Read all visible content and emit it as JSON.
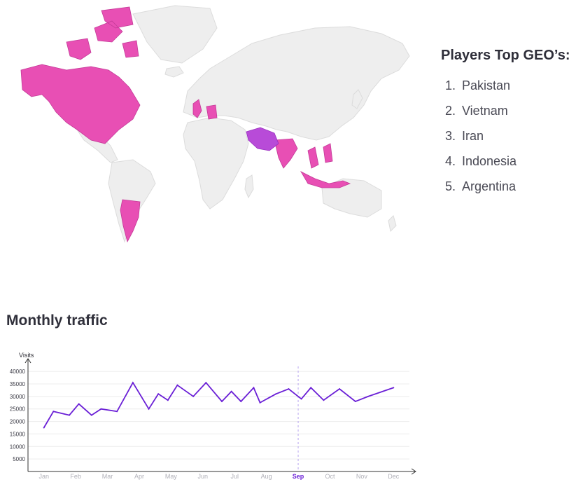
{
  "geo": {
    "title": "Players Top GEO’s:",
    "items": [
      {
        "rank": "1.",
        "name": "Pakistan"
      },
      {
        "rank": "2.",
        "name": "Vietnam"
      },
      {
        "rank": "3.",
        "name": "Iran"
      },
      {
        "rank": "4.",
        "name": "Indonesia"
      },
      {
        "rank": "5.",
        "name": "Argentina"
      }
    ]
  },
  "map": {
    "base_color": "#eeeeee",
    "highlight_color": "#e84fb4",
    "highlight_alt_color": "#b84bd8",
    "accent_color": "#8a3be0"
  },
  "traffic": {
    "title": "Monthly traffic"
  },
  "chart_data": {
    "type": "line",
    "ylabel": "Visits",
    "xlabel": "",
    "ylim": [
      0,
      42000
    ],
    "yticks": [
      5000,
      10000,
      15000,
      20000,
      25000,
      30000,
      35000,
      40000
    ],
    "ytick_labels": [
      "5000",
      "10000",
      "15000",
      "20000",
      "25000",
      "30000",
      "35000",
      "40000"
    ],
    "months": [
      "Jan",
      "Feb",
      "Mar",
      "Apr",
      "May",
      "Jun",
      "Jul",
      "Aug",
      "Sep",
      "Oct",
      "Nov",
      "Dec"
    ],
    "highlighted_month": "Sep",
    "x": [
      0.5,
      0.8,
      1.3,
      1.6,
      2.0,
      2.3,
      2.8,
      3.3,
      3.8,
      4.1,
      4.4,
      4.7,
      5.2,
      5.6,
      6.1,
      6.4,
      6.7,
      7.1,
      7.3,
      7.8,
      8.2,
      8.6,
      8.9,
      9.3,
      9.8,
      10.3,
      10.7,
      11.5
    ],
    "y": [
      17500,
      24000,
      22500,
      27000,
      22500,
      25000,
      24000,
      35500,
      25000,
      31000,
      28500,
      34500,
      30000,
      35500,
      28000,
      32000,
      28000,
      33500,
      27500,
      31000,
      33000,
      29000,
      33500,
      28500,
      33000,
      28000,
      30000,
      33500
    ],
    "line_color": "#6a1fd6",
    "grid": true
  }
}
